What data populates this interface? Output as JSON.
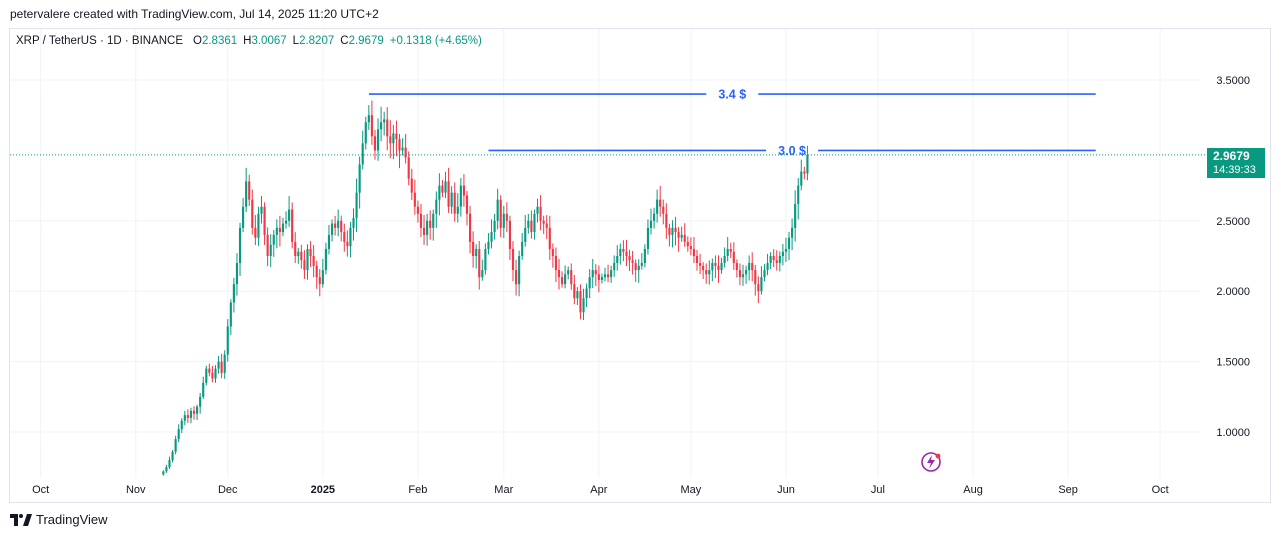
{
  "header": {
    "credit": "petervalere created with TradingView.com, Jul 14, 2025 11:20 UTC+2"
  },
  "legend": {
    "symbol": "XRP / TetherUS · 1D · BINANCE",
    "o_label": "O",
    "o": "2.8361",
    "h_label": "H",
    "h": "3.0067",
    "l_label": "L",
    "l": "2.8207",
    "c_label": "C",
    "c": "2.9679",
    "change": "+0.1318 (+4.65%)"
  },
  "price_tag": {
    "price": "2.9679",
    "countdown": "14:39:33"
  },
  "footer": {
    "brand": "TradingView"
  },
  "colors": {
    "up": "#089981",
    "down": "#f23645",
    "line": "#2962ff",
    "grid": "#f0f3fa"
  },
  "chart_data": {
    "type": "candlestick",
    "symbol": "XRPUSDT",
    "timeframe": "1D",
    "y_ticks": [
      "3.5000",
      "2.5000",
      "2.0000",
      "1.5000",
      "1.0000"
    ],
    "y_tick_values": [
      3.5,
      2.5,
      2.0,
      1.5,
      1.0
    ],
    "ylim": [
      0.7,
      3.8
    ],
    "x_ticks": [
      "Oct",
      "Nov",
      "Dec",
      "2025",
      "Feb",
      "Mar",
      "Apr",
      "May",
      "Jun",
      "Jul",
      "Aug",
      "Sep",
      "Oct"
    ],
    "x_tick_days": [
      0,
      31,
      61,
      92,
      123,
      151,
      182,
      212,
      243,
      273,
      304,
      335,
      365
    ],
    "xlim_days": [
      -10,
      378
    ],
    "annotations": [
      {
        "label": "3.4 $",
        "price": 3.4,
        "from_day": 107,
        "to_day": 344
      },
      {
        "label": "3.0 $",
        "price": 3.0,
        "from_day": 146,
        "to_day": 344
      }
    ],
    "last_price": 2.9679,
    "series_first_day": 40,
    "closes": [
      0.72,
      0.75,
      0.8,
      0.86,
      0.95,
      1.02,
      1.08,
      1.12,
      1.1,
      1.15,
      1.13,
      1.18,
      1.25,
      1.35,
      1.45,
      1.42,
      1.38,
      1.45,
      1.5,
      1.42,
      1.55,
      1.75,
      1.92,
      2.05,
      2.2,
      2.45,
      2.6,
      2.78,
      2.65,
      2.45,
      2.38,
      2.55,
      2.6,
      2.4,
      2.25,
      2.33,
      2.4,
      2.45,
      2.42,
      2.48,
      2.5,
      2.58,
      2.35,
      2.25,
      2.28,
      2.22,
      2.15,
      2.3,
      2.25,
      2.18,
      2.1,
      2.05,
      2.15,
      2.3,
      2.4,
      2.48,
      2.45,
      2.5,
      2.42,
      2.35,
      2.32,
      2.45,
      2.52,
      2.7,
      2.9,
      3.05,
      3.2,
      3.25,
      3.1,
      3.0,
      3.15,
      3.2,
      3.22,
      3.1,
      3.05,
      3.12,
      3.08,
      3.0,
      3.02,
      2.95,
      2.8,
      2.7,
      2.6,
      2.55,
      2.45,
      2.4,
      2.5,
      2.45,
      2.55,
      2.65,
      2.75,
      2.7,
      2.78,
      2.6,
      2.7,
      2.55,
      2.6,
      2.75,
      2.68,
      2.55,
      2.35,
      2.25,
      2.3,
      2.1,
      2.15,
      2.3,
      2.35,
      2.42,
      2.5,
      2.65,
      2.45,
      2.55,
      2.5,
      2.3,
      2.15,
      2.05,
      2.25,
      2.35,
      2.45,
      2.5,
      2.42,
      2.55,
      2.6,
      2.5,
      2.48,
      2.45,
      2.3,
      2.25,
      2.15,
      2.1,
      2.05,
      2.12,
      2.15,
      2.05,
      1.95,
      2.0,
      1.85,
      1.95,
      2.02,
      2.1,
      2.15,
      2.12,
      2.08,
      2.1,
      2.12,
      2.1,
      2.15,
      2.2,
      2.25,
      2.3,
      2.28,
      2.25,
      2.22,
      2.2,
      2.15,
      2.18,
      2.2,
      2.3,
      2.45,
      2.5,
      2.55,
      2.65,
      2.6,
      2.55,
      2.45,
      2.4,
      2.45,
      2.42,
      2.38,
      2.4,
      2.35,
      2.32,
      2.3,
      2.25,
      2.2,
      2.18,
      2.15,
      2.12,
      2.15,
      2.2,
      2.18,
      2.15,
      2.2,
      2.25,
      2.3,
      2.28,
      2.2,
      2.15,
      2.1,
      2.12,
      2.15,
      2.2,
      2.15,
      2.05,
      2.0,
      2.1,
      2.15,
      2.2,
      2.25,
      2.22,
      2.2,
      2.25,
      2.28,
      2.3,
      2.38,
      2.45,
      2.62,
      2.75,
      2.85,
      2.8361,
      2.9679
    ]
  }
}
